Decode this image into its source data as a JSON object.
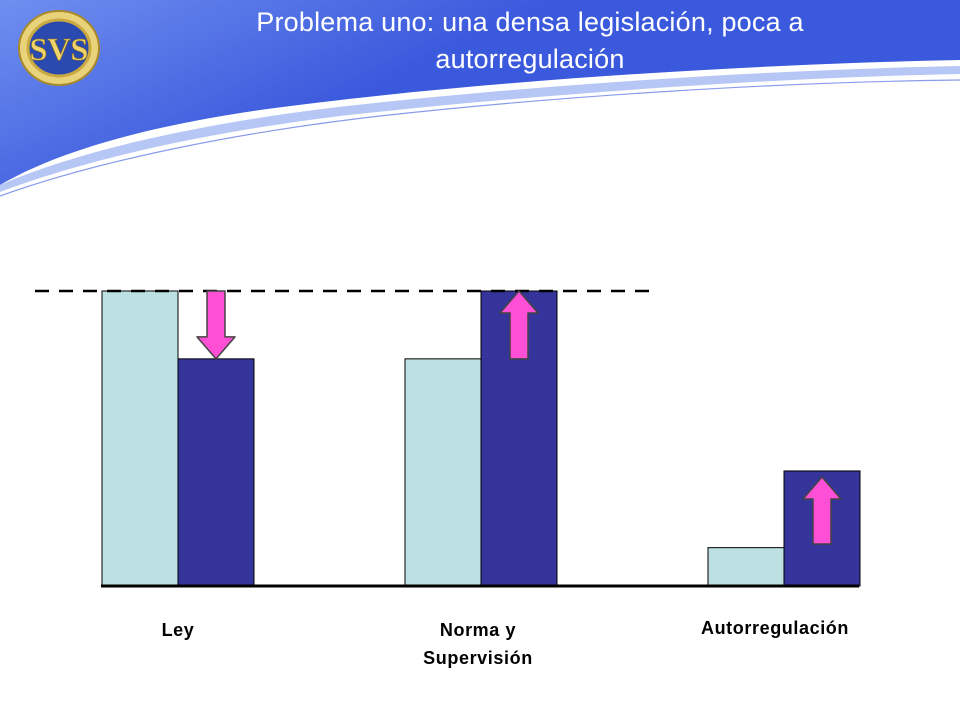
{
  "slide": {
    "title": "Problema uno: una densa legislación, poca a autorregulación",
    "logo_text": "SVS"
  },
  "colors": {
    "header_blue": "#3b59dc",
    "header_blue_light": "#6f8ff0",
    "series_light": "#bde0e2",
    "series_dark": "#34349b",
    "arrow_fill": "#ff4fd6",
    "arrow_stroke": "#444444",
    "axis": "#000000",
    "logo_gold": "#d8b84a",
    "logo_blue": "#1d3a95"
  },
  "chart_data": {
    "type": "bar",
    "categories": [
      "Ley",
      "Norma y Supervisión",
      "Autorregulación"
    ],
    "category_labels": [
      [
        "Ley"
      ],
      [
        "Norma y",
        "Supervisión"
      ],
      [
        "Autorregulación"
      ]
    ],
    "series": [
      {
        "values": [
          100,
          77,
          13
        ]
      },
      {
        "values": [
          77,
          100,
          39
        ]
      }
    ],
    "ylim": [
      0,
      100
    ],
    "reference_line": {
      "value": 100,
      "style": "dashed"
    },
    "arrows": [
      {
        "category": 0,
        "direction": "down"
      },
      {
        "category": 1,
        "direction": "up"
      },
      {
        "category": 2,
        "direction": "up"
      }
    ],
    "grid": false,
    "legend": "none"
  }
}
